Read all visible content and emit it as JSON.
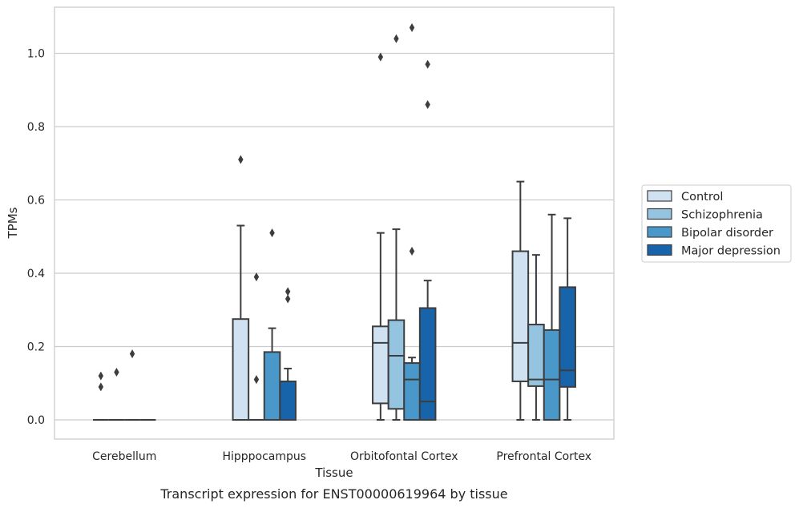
{
  "chart_data": {
    "type": "box",
    "caption": "Transcript expression for ENST00000619964 by tissue",
    "xlabel": "Tissue",
    "ylabel": "TPMs",
    "ylim": [
      -0.05,
      1.13
    ],
    "yticks": [
      0.0,
      0.2,
      0.4,
      0.6,
      0.8,
      1.0
    ],
    "ytick_labels": [
      "0.0",
      "0.2",
      "0.4",
      "0.6",
      "0.8",
      "1.0"
    ],
    "grid": "horizontal",
    "legend_position": "right",
    "categories": [
      "Cerebellum",
      "Hipppocampus",
      "Orbitofontal Cortex",
      "Prefrontal Cortex"
    ],
    "series": [
      {
        "name": "Control",
        "color": "#d0e1f2",
        "boxes": [
          {
            "q1": 0,
            "median": 0,
            "q3": 0,
            "whislo": 0,
            "whishi": 0,
            "fliers": [
              0.12,
              0.09
            ]
          },
          {
            "q1": 0,
            "median": 0,
            "q3": 0.275,
            "whislo": 0,
            "whishi": 0.53,
            "fliers": [
              0.71
            ]
          },
          {
            "q1": 0.045,
            "median": 0.21,
            "q3": 0.255,
            "whislo": 0,
            "whishi": 0.51,
            "fliers": [
              0.99
            ]
          },
          {
            "q1": 0.105,
            "median": 0.21,
            "q3": 0.46,
            "whislo": 0,
            "whishi": 0.65,
            "fliers": []
          }
        ]
      },
      {
        "name": "Schizophrenia",
        "color": "#94c4df",
        "boxes": [
          {
            "q1": 0,
            "median": 0,
            "q3": 0,
            "whislo": 0,
            "whishi": 0,
            "fliers": [
              0.13
            ]
          },
          {
            "q1": 0,
            "median": 0,
            "q3": 0,
            "whislo": 0,
            "whishi": 0,
            "fliers": [
              0.39,
              0.11
            ]
          },
          {
            "q1": 0.03,
            "median": 0.175,
            "q3": 0.272,
            "whislo": 0,
            "whishi": 0.52,
            "fliers": [
              1.04
            ]
          },
          {
            "q1": 0.092,
            "median": 0.11,
            "q3": 0.26,
            "whislo": 0,
            "whishi": 0.45,
            "fliers": []
          }
        ]
      },
      {
        "name": "Bipolar disorder",
        "color": "#4a98c9",
        "boxes": [
          {
            "q1": 0,
            "median": 0,
            "q3": 0,
            "whislo": 0,
            "whishi": 0,
            "fliers": [
              0.18
            ]
          },
          {
            "q1": 0,
            "median": 0,
            "q3": 0.185,
            "whislo": 0,
            "whishi": 0.25,
            "fliers": [
              0.51
            ]
          },
          {
            "q1": 0,
            "median": 0.11,
            "q3": 0.155,
            "whislo": 0,
            "whishi": 0.17,
            "fliers": [
              0.46,
              1.07
            ]
          },
          {
            "q1": 0,
            "median": 0.11,
            "q3": 0.245,
            "whislo": 0,
            "whishi": 0.56,
            "fliers": []
          }
        ]
      },
      {
        "name": "Major depression",
        "color": "#1764ab",
        "boxes": [
          {
            "q1": 0,
            "median": 0,
            "q3": 0,
            "whislo": 0,
            "whishi": 0,
            "fliers": []
          },
          {
            "q1": 0,
            "median": 0,
            "q3": 0.105,
            "whislo": 0,
            "whishi": 0.14,
            "fliers": [
              0.35,
              0.33
            ]
          },
          {
            "q1": 0,
            "median": 0.05,
            "q3": 0.305,
            "whislo": 0,
            "whishi": 0.38,
            "fliers": [
              0.97,
              0.86
            ]
          },
          {
            "q1": 0.09,
            "median": 0.135,
            "q3": 0.362,
            "whislo": 0,
            "whishi": 0.55,
            "fliers": []
          }
        ]
      }
    ]
  }
}
